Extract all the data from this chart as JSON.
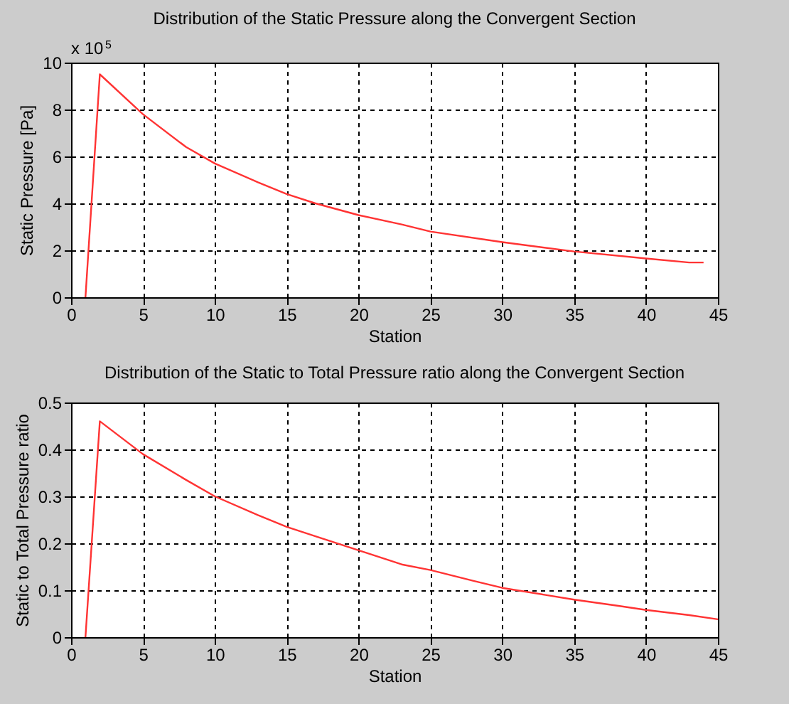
{
  "chart_data": [
    {
      "type": "line",
      "title": "Distribution of the Static Pressure along the Convergent Section",
      "xlabel": "Station",
      "ylabel": "Static Pressure [Pa]",
      "annotations": [
        "x 10$^{5}$"
      ],
      "x": [
        1,
        2,
        5,
        8,
        10,
        13,
        15,
        17,
        20,
        23,
        25,
        30,
        35,
        40,
        43,
        44
      ],
      "series": [
        {
          "color": "#ff3333",
          "values": [
            0,
            9.5,
            7.8,
            6.4,
            5.7,
            4.9,
            4.4,
            4.0,
            3.5,
            3.1,
            2.8,
            2.35,
            1.95,
            1.65,
            1.48,
            1.48
          ]
        }
      ],
      "xlim": [
        0,
        45
      ],
      "xticks": [
        0,
        5,
        10,
        15,
        20,
        25,
        30,
        35,
        40,
        45
      ],
      "ylim": [
        0,
        10
      ],
      "yticks": [
        0,
        2,
        4,
        6,
        8,
        10
      ],
      "grid": true,
      "line_style": "solid"
    },
    {
      "type": "line",
      "title": "Distribution of the Static to Total Pressure ratio along the Convergent Section",
      "xlabel": "Station",
      "ylabel": "Static to Total Pressure ratio",
      "x": [
        1,
        2,
        5,
        8,
        10,
        13,
        15,
        17,
        20,
        23,
        25,
        28,
        30,
        33,
        35,
        38,
        40,
        43,
        45
      ],
      "series": [
        {
          "color": "#ff3333",
          "values": [
            0,
            0.46,
            0.39,
            0.335,
            0.3,
            0.26,
            0.235,
            0.215,
            0.185,
            0.155,
            0.143,
            0.12,
            0.105,
            0.09,
            0.08,
            0.067,
            0.058,
            0.047,
            0.038
          ]
        }
      ],
      "xlim": [
        0,
        45
      ],
      "xticks": [
        0,
        5,
        10,
        15,
        20,
        25,
        30,
        35,
        40,
        45
      ],
      "ylim": [
        0,
        0.5
      ],
      "yticks": [
        0,
        0.1,
        0.2,
        0.3,
        0.4,
        0.5
      ],
      "grid": true,
      "line_style": "solid"
    }
  ]
}
